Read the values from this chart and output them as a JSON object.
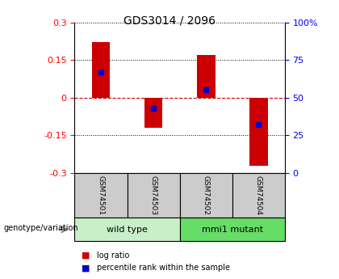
{
  "title": "GDS3014 / 2096",
  "samples": [
    "GSM74501",
    "GSM74503",
    "GSM74502",
    "GSM74504"
  ],
  "log_ratios": [
    0.22,
    -0.12,
    0.17,
    -0.27
  ],
  "percentile_ranks": [
    0.67,
    0.43,
    0.55,
    0.32
  ],
  "bar_color": "#cc0000",
  "square_color": "#0000cc",
  "ylim": [
    -0.3,
    0.3
  ],
  "yticks_left": [
    -0.3,
    -0.15,
    0,
    0.15,
    0.3
  ],
  "yticks_right": [
    0,
    25,
    50,
    75,
    100
  ],
  "groups": [
    {
      "label": "wild type",
      "indices": [
        0,
        1
      ],
      "color": "#c8f0c8"
    },
    {
      "label": "mmi1 mutant",
      "indices": [
        2,
        3
      ],
      "color": "#66dd66"
    }
  ],
  "group_label": "genotype/variation",
  "legend_items": [
    {
      "label": "log ratio",
      "color": "#cc0000"
    },
    {
      "label": "percentile rank within the sample",
      "color": "#0000cc"
    }
  ],
  "bar_width": 0.35,
  "zero_line_color": "#cc0000",
  "dotted_color": "#000000",
  "sample_box_color": "#cccccc",
  "title_fontsize": 10
}
